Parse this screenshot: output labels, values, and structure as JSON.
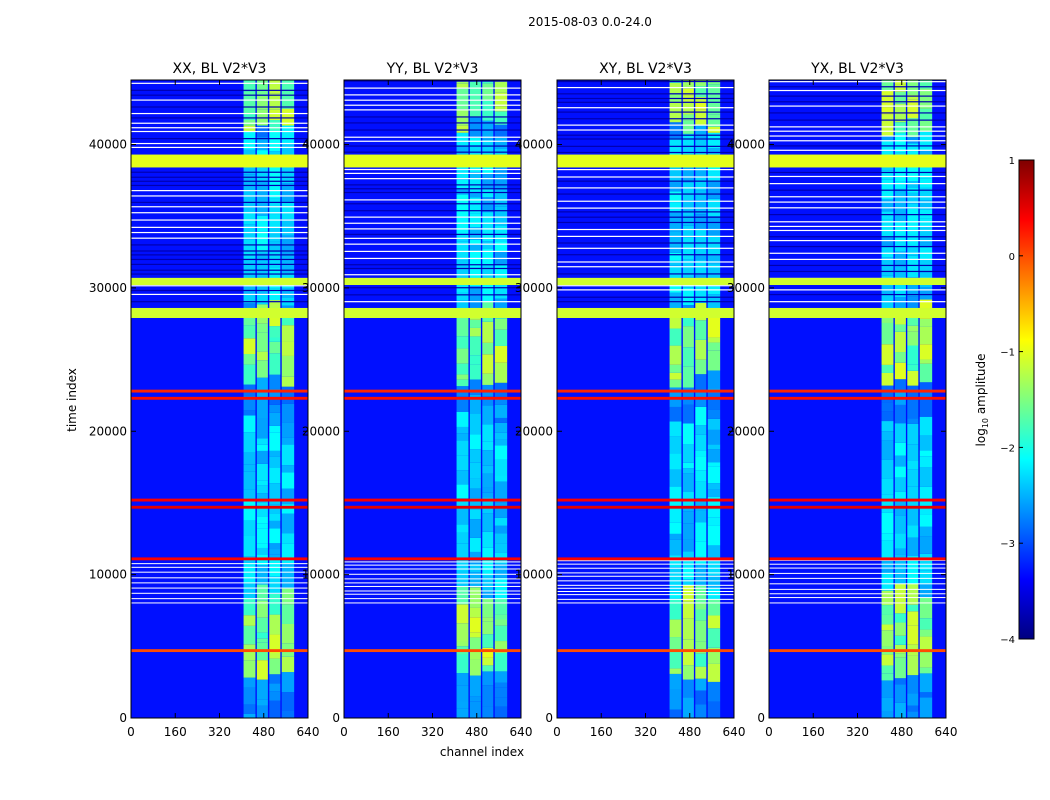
{
  "chart_data": {
    "type": "heatmap",
    "suptitle": "2015-08-03 0.0-24.0",
    "xlabel": "channel index",
    "ylabel": "time index",
    "xlim": [
      0,
      640
    ],
    "ylim": [
      0,
      44500
    ],
    "xticks": [
      0,
      160,
      320,
      480,
      640
    ],
    "yticks": [
      0,
      10000,
      20000,
      30000,
      40000
    ],
    "panels": [
      {
        "title": "XX, BL V2*V3",
        "pol": "XX"
      },
      {
        "title": "YY, BL V2*V3",
        "pol": "YY"
      },
      {
        "title": "XY, BL V2*V3",
        "pol": "XY"
      },
      {
        "title": "YX, BL V2*V3",
        "pol": "YX"
      }
    ],
    "colorbar": {
      "label": "log10 amplitude",
      "label_base": "log",
      "label_sub": "10",
      "label_rest": " amplitude",
      "colormap": "jet",
      "range": [
        -4,
        1
      ],
      "ticks": [
        1,
        0,
        -1,
        -2,
        -3,
        -4
      ],
      "tick_labels": [
        "1",
        "0",
        "−1",
        "−2",
        "−3",
        "−4"
      ],
      "colors": [
        "#00007f",
        "#0000ff",
        "#007fff",
        "#00ffff",
        "#7fff7f",
        "#ffff00",
        "#ff7f00",
        "#ff0000",
        "#7f0000"
      ]
    },
    "bright_channel_bands": [
      [
        407,
        450
      ],
      [
        455,
        495
      ],
      [
        500,
        540
      ],
      [
        545,
        590
      ]
    ],
    "flagged_time_bands": [
      {
        "t0": 38400,
        "t1": 39300,
        "value": -1.0
      },
      {
        "t0": 30200,
        "t1": 30700,
        "value": -1.1
      },
      {
        "t0": 27900,
        "t1": 28600,
        "value": -1.1
      },
      {
        "t0": 22900,
        "t1": 22700,
        "value": 0.2
      },
      {
        "t0": 22400,
        "t1": 22200,
        "value": 0.3
      },
      {
        "t0": 15300,
        "t1": 15100,
        "value": 0.4
      },
      {
        "t0": 14800,
        "t1": 14600,
        "value": 0.5
      },
      {
        "t0": 11200,
        "t1": 11000,
        "value": 0.4
      },
      {
        "t0": 4800,
        "t1": 4600,
        "value": 0.0
      }
    ]
  }
}
